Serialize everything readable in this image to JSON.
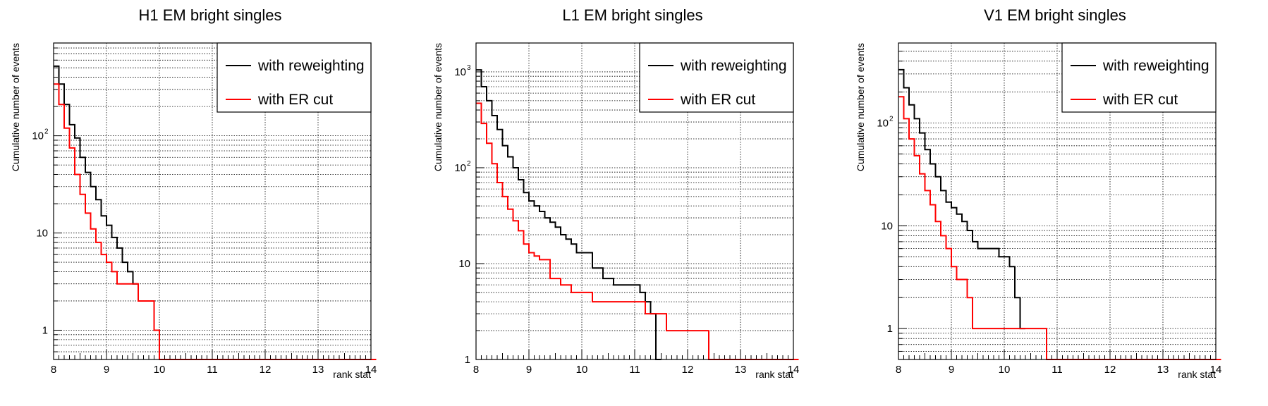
{
  "charts": [
    {
      "chart_data": {
        "type": "line",
        "title": "H1 EM bright singles",
        "xlabel": "rank stat",
        "ylabel": "Cumulative number of events",
        "xlim": [
          8,
          14
        ],
        "ylim": [
          0.5,
          900
        ],
        "ylog": true,
        "x_ticks": [
          "8",
          "9",
          "10",
          "11",
          "12",
          "13",
          "14"
        ],
        "y_ticks": [
          {
            "value": 1,
            "label": "1"
          },
          {
            "value": 10,
            "label": "10"
          },
          {
            "value": 100,
            "label": "10",
            "exp": "2"
          }
        ],
        "grid": true,
        "legend_position": "top-right",
        "series": [
          {
            "name": "with reweighting",
            "color": "#000000",
            "x": [
              8.0,
              8.1,
              8.2,
              8.3,
              8.4,
              8.5,
              8.6,
              8.7,
              8.8,
              8.9,
              9.0,
              9.1,
              9.2,
              9.3,
              9.4,
              9.5
            ],
            "values": [
              520,
              340,
              210,
              130,
              95,
              60,
              42,
              30,
              22,
              15,
              12,
              9,
              7,
              5,
              4,
              3
            ]
          },
          {
            "name": "with ER cut",
            "color": "#ff0000",
            "x": [
              8.0,
              8.1,
              8.2,
              8.3,
              8.4,
              8.5,
              8.6,
              8.7,
              8.8,
              8.9,
              9.0,
              9.1,
              9.2,
              9.3,
              9.6,
              9.9,
              10.0,
              14.0
            ],
            "values": [
              340,
              210,
              120,
              75,
              40,
              25,
              16,
              11,
              8,
              6,
              5,
              4,
              3,
              3,
              2,
              1,
              0.5,
              0.5
            ]
          }
        ]
      }
    },
    {
      "chart_data": {
        "type": "line",
        "title": "L1 EM bright singles",
        "xlabel": "rank stat",
        "ylabel": "Cumulative number of events",
        "xlim": [
          8,
          14
        ],
        "ylim": [
          1,
          2000
        ],
        "ylog": true,
        "x_ticks": [
          "8",
          "9",
          "10",
          "11",
          "12",
          "13",
          "14"
        ],
        "y_ticks": [
          {
            "value": 1,
            "label": "1"
          },
          {
            "value": 10,
            "label": "10"
          },
          {
            "value": 100,
            "label": "10",
            "exp": "2"
          },
          {
            "value": 1000,
            "label": "10",
            "exp": "3"
          }
        ],
        "grid": true,
        "legend_position": "top-right",
        "series": [
          {
            "name": "with reweighting",
            "color": "#000000",
            "x": [
              8.0,
              8.1,
              8.2,
              8.3,
              8.4,
              8.5,
              8.6,
              8.7,
              8.8,
              8.9,
              9.0,
              9.1,
              9.2,
              9.3,
              9.4,
              9.5,
              9.6,
              9.7,
              9.8,
              9.9,
              10.2,
              10.4,
              10.6,
              11.1,
              11.2,
              11.3,
              11.4
            ],
            "values": [
              1050,
              700,
              500,
              350,
              250,
              170,
              130,
              100,
              75,
              55,
              45,
              40,
              35,
              30,
              27,
              24,
              20,
              18,
              16,
              13,
              9,
              7,
              6,
              5,
              4,
              3,
              1
            ]
          },
          {
            "name": "with ER cut",
            "color": "#ff0000",
            "x": [
              8.0,
              8.1,
              8.2,
              8.3,
              8.4,
              8.5,
              8.6,
              8.7,
              8.8,
              8.9,
              9.0,
              9.1,
              9.2,
              9.4,
              9.6,
              9.8,
              10.2,
              11.2,
              11.6,
              12.4,
              14.0
            ],
            "values": [
              470,
              290,
              180,
              110,
              70,
              50,
              37,
              28,
              22,
              16,
              13,
              12,
              11,
              7,
              6,
              5,
              4,
              3,
              2,
              1,
              1
            ]
          }
        ]
      }
    },
    {
      "chart_data": {
        "type": "line",
        "title": "V1 EM bright singles",
        "xlabel": "rank stat",
        "ylabel": "Cumulative number of events",
        "xlim": [
          8,
          14
        ],
        "ylim": [
          0.5,
          600
        ],
        "ylog": true,
        "x_ticks": [
          "8",
          "9",
          "10",
          "11",
          "12",
          "13",
          "14"
        ],
        "y_ticks": [
          {
            "value": 1,
            "label": "1"
          },
          {
            "value": 10,
            "label": "10"
          },
          {
            "value": 100,
            "label": "10",
            "exp": "2"
          }
        ],
        "grid": true,
        "legend_position": "top-right",
        "series": [
          {
            "name": "with reweighting",
            "color": "#000000",
            "x": [
              8.0,
              8.1,
              8.2,
              8.3,
              8.4,
              8.5,
              8.6,
              8.7,
              8.8,
              8.9,
              9.0,
              9.1,
              9.2,
              9.3,
              9.4,
              9.5,
              9.9,
              10.1,
              10.2,
              10.3
            ],
            "values": [
              330,
              220,
              150,
              110,
              80,
              55,
              40,
              30,
              22,
              17,
              15,
              13,
              11,
              9,
              7,
              6,
              5,
              4,
              2,
              1
            ]
          },
          {
            "name": "with ER cut",
            "color": "#ff0000",
            "x": [
              8.0,
              8.1,
              8.2,
              8.3,
              8.4,
              8.5,
              8.6,
              8.7,
              8.8,
              8.9,
              9.0,
              9.1,
              9.3,
              9.4,
              10.8,
              14.0
            ],
            "values": [
              180,
              110,
              70,
              48,
              32,
              22,
              16,
              11,
              8,
              6,
              4,
              3,
              2,
              1,
              0.5,
              0.5
            ]
          }
        ]
      }
    }
  ]
}
